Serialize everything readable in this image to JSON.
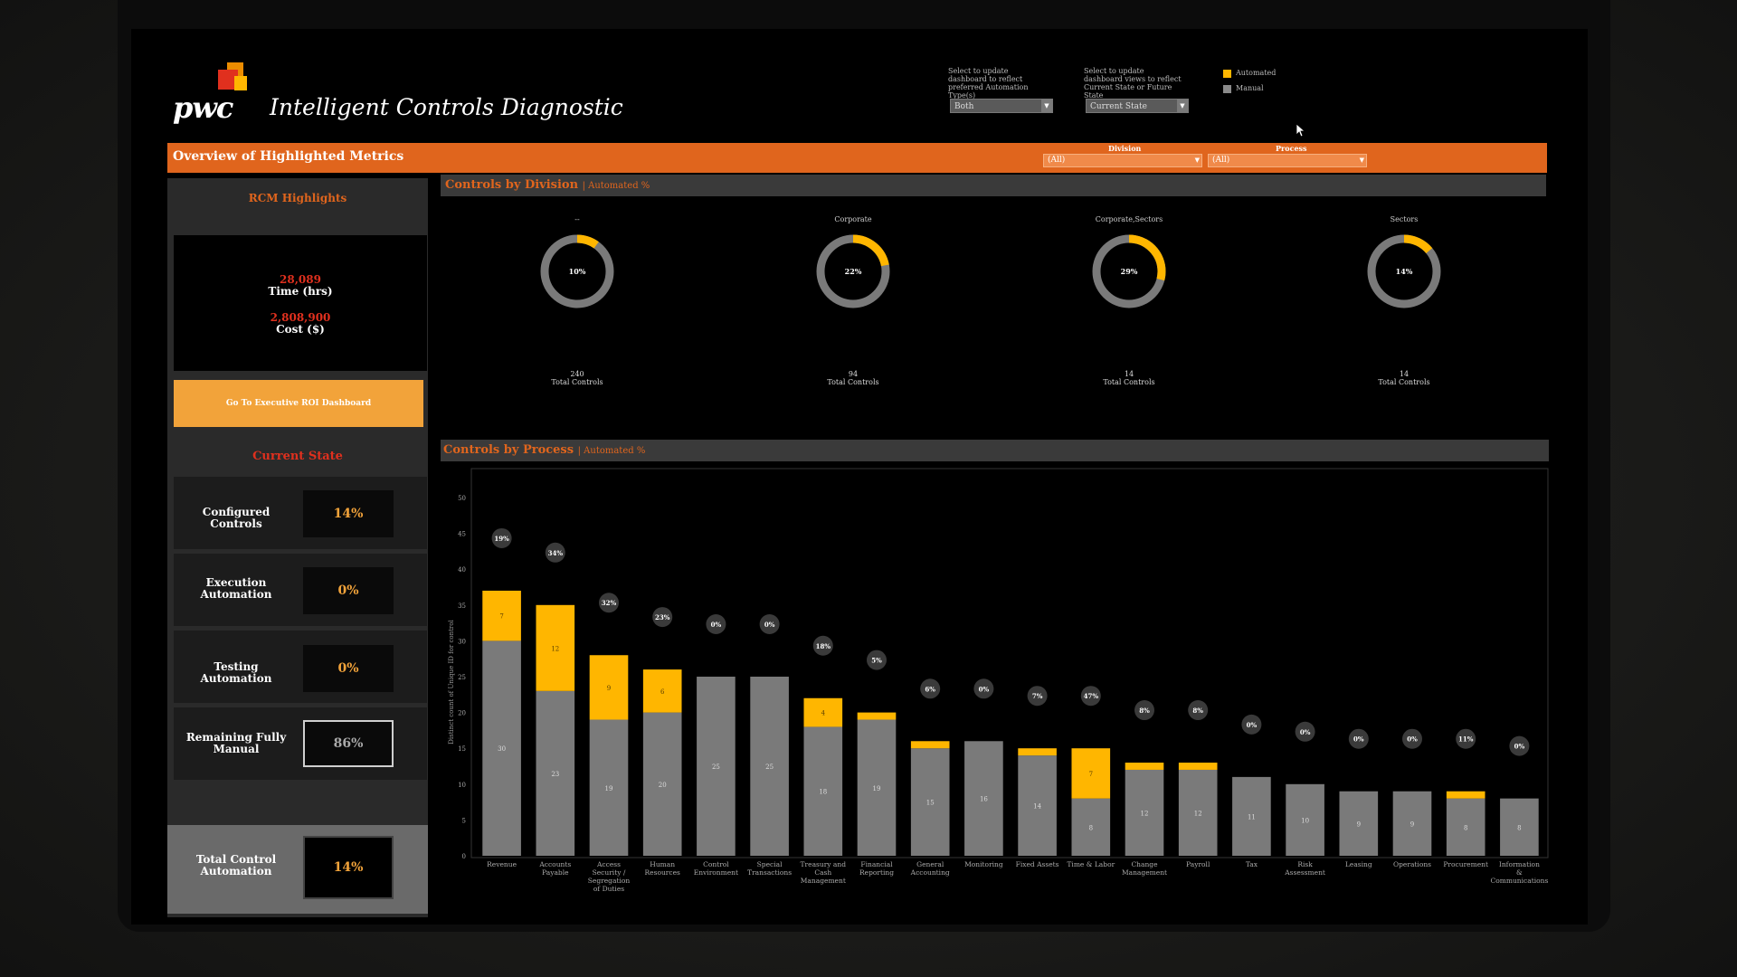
{
  "header": {
    "logo": "pwc",
    "title": "Intelligent Controls Diagnostic",
    "automation_type_label": "Select to update dashboard to reflect preferred Automation Type(s)",
    "automation_type_value": "Both",
    "state_label": "Select to update dashboard views to reflect Current State or Future State",
    "state_value": "Current State",
    "legend": [
      {
        "label": "Automated",
        "color": "#ffb600"
      },
      {
        "label": "Manual",
        "color": "#8a8a8a"
      }
    ]
  },
  "overview": {
    "title": "Overview of Highlighted Metrics",
    "division_label": "Division",
    "division_value": "(All)",
    "process_label": "Process",
    "process_value": "(All)"
  },
  "rcm": {
    "title": "RCM Highlights",
    "time_value": "28,089",
    "time_label": "Time (hrs)",
    "cost_value": "2,808,900",
    "cost_label": "Cost ($)",
    "roi_button": "Go To Executive ROI Dashboard"
  },
  "current_state": {
    "title": "Current State",
    "metrics": [
      {
        "label": "Configured Controls",
        "value": "14%"
      },
      {
        "label": "Execution Automation",
        "value": "0%"
      },
      {
        "label": "Testing Automation",
        "value": "0%"
      },
      {
        "label": "Remaining Fully Manual",
        "value": "86%"
      }
    ],
    "total_label": "Total Control Automation",
    "total_value": "14%"
  },
  "division_section": {
    "title": "Controls by Division",
    "subtitle": "| Automated %",
    "total_label": "Total Controls",
    "donuts": [
      {
        "name": "--",
        "percent": 10,
        "label": "10%",
        "total": "240"
      },
      {
        "name": "Corporate",
        "percent": 22,
        "label": "22%",
        "total": "94"
      },
      {
        "name": "Corporate,Sectors",
        "percent": 29,
        "label": "29%",
        "total": "14"
      },
      {
        "name": "Sectors",
        "percent": 14,
        "label": "14%",
        "total": "14"
      }
    ]
  },
  "process_section": {
    "title": "Controls by Process",
    "subtitle": "| Automated %"
  },
  "chart_data": {
    "type": "bar",
    "stacked": true,
    "ylabel": "Distinct count of Unique ID for control",
    "ylim": [
      0,
      50
    ],
    "yticks": [
      0,
      5,
      10,
      15,
      20,
      25,
      30,
      35,
      40,
      45,
      50
    ],
    "categories": [
      "Revenue",
      "Accounts Payable",
      "Access Security / Segregation of Duties",
      "Human Resources",
      "Control Environment",
      "Special Transactions",
      "Treasury and Cash Management",
      "Financial Reporting",
      "General Accounting",
      "Monitoring",
      "Fixed Assets",
      "Time & Labor",
      "Change Management",
      "Payroll",
      "Tax",
      "Risk Assessment",
      "Leasing",
      "Operations",
      "Procurement",
      "Information & Communications"
    ],
    "series": [
      {
        "name": "Manual",
        "color": "#7a7a7a",
        "values": [
          30,
          23,
          19,
          20,
          25,
          25,
          18,
          19,
          15,
          16,
          14,
          8,
          12,
          12,
          11,
          10,
          9,
          9,
          8,
          8
        ]
      },
      {
        "name": "Automated",
        "color": "#ffb600",
        "values": [
          7,
          12,
          9,
          6,
          0,
          0,
          4,
          1,
          1,
          0,
          1,
          7,
          1,
          1,
          0,
          0,
          0,
          0,
          1,
          0
        ]
      }
    ],
    "manual_labels": [
      "30",
      "23",
      "19",
      "20",
      "25",
      "25",
      "18",
      "19",
      "15",
      "16",
      "14",
      "8",
      "12",
      "12",
      "11",
      "10",
      "9",
      "9",
      "8",
      "8"
    ],
    "automated_labels": [
      "7",
      "12",
      "9",
      "6",
      "",
      "",
      "4",
      "",
      "",
      "",
      "",
      "7",
      "",
      "",
      "",
      "",
      "",
      "",
      "",
      ""
    ],
    "automated_percent_labels": [
      "19%",
      "34%",
      "32%",
      "23%",
      "0%",
      "0%",
      "18%",
      "5%",
      "6%",
      "0%",
      "7%",
      "47%",
      "8%",
      "8%",
      "0%",
      "0%",
      "0%",
      "0%",
      "11%",
      "0%"
    ]
  }
}
